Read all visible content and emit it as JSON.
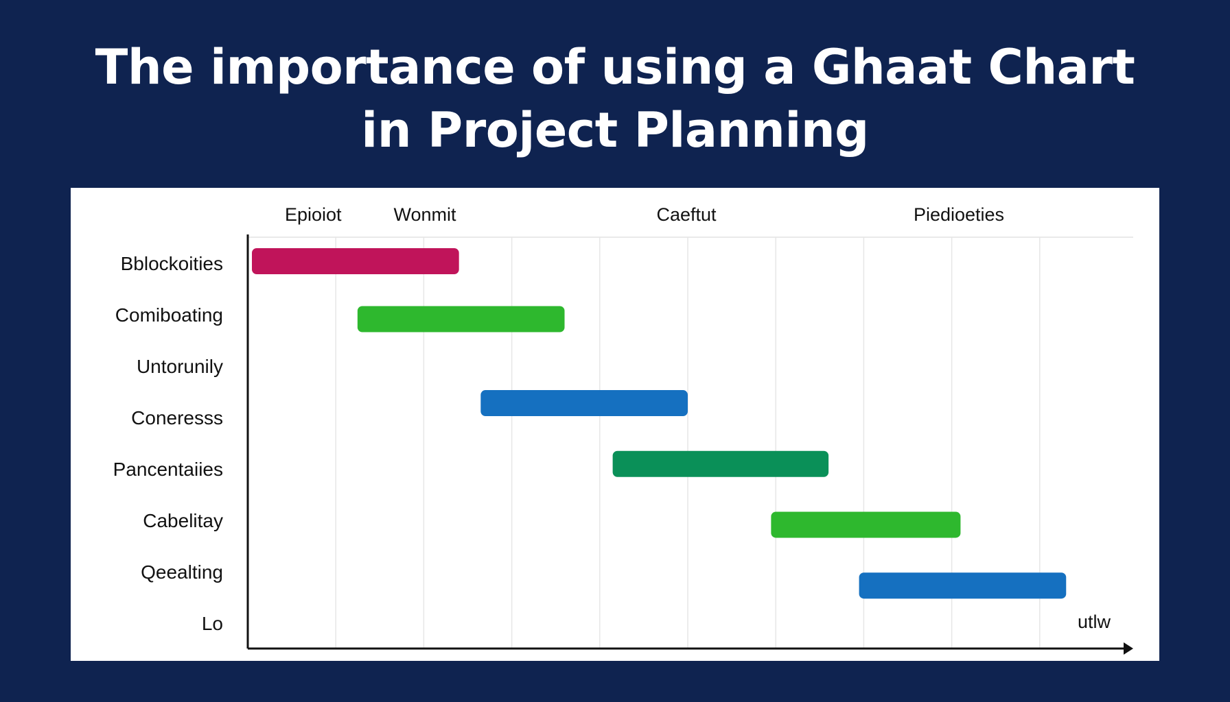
{
  "title_line1": "The importance of using a Ghaat Chart",
  "title_line2": "in Project Planning",
  "colors": {
    "background": "#0f2350",
    "panel": "#ffffff",
    "magenta": "#c0145a",
    "green": "#2eb82e",
    "blue": "#1570c0",
    "teal": "#0a9058"
  },
  "chart_data": {
    "type": "gantt",
    "header_labels": [
      "Epioiot",
      "Wonmit",
      "Caeftut",
      "Piedioeties"
    ],
    "row_labels": [
      "Bblockoities",
      "Comiboating",
      "Untorunily",
      "Coneresss",
      "Pancentaiies",
      "Cabelitay",
      "Qeealting",
      "Lo"
    ],
    "x_axis_end_label": "utlw",
    "x_range": [
      0,
      10
    ],
    "columns": 10,
    "tasks": [
      {
        "row": "Bblockoities",
        "start": 0.0,
        "end": 2.4,
        "color": "#c0145a"
      },
      {
        "row": "Comiboating",
        "start": 1.2,
        "end": 3.6,
        "color": "#2eb82e"
      },
      {
        "row": "Coneresss",
        "start": 2.6,
        "end": 5.0,
        "color": "#1570c0"
      },
      {
        "row": "Pancentaiies",
        "start": 4.1,
        "end": 6.6,
        "color": "#0a9058"
      },
      {
        "row": "Cabelitay",
        "start": 5.9,
        "end": 8.1,
        "color": "#2eb82e"
      },
      {
        "row": "Qeealting",
        "start": 6.9,
        "end": 9.3,
        "color": "#1570c0"
      }
    ],
    "grid": true
  }
}
